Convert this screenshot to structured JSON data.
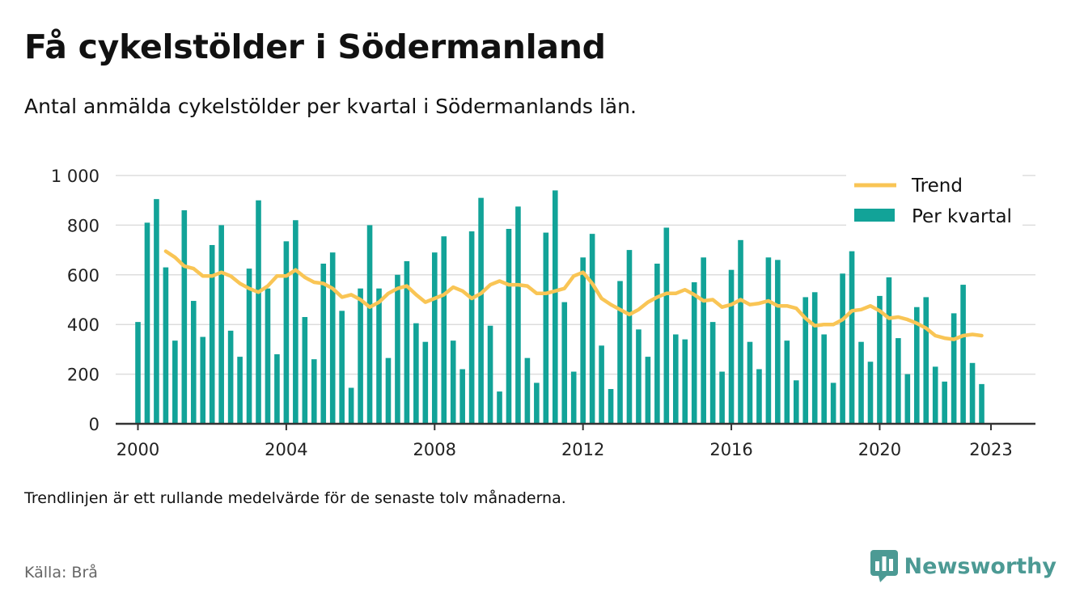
{
  "title": "Få cykelstölder i Södermanland",
  "subtitle": "Antal anmälda cykelstölder per kvartal i Södermanlands län.",
  "footnote": "Trendlinjen är ett rullande medelvärde för de senaste tolv månaderna.",
  "source": "Källa: Brå",
  "brand": {
    "name": "Newsworthy",
    "icon": "newsworthy-logo-icon",
    "color": "#4c9a94"
  },
  "chart_data": {
    "type": "bar",
    "title": "Få cykelstölder i Södermanland",
    "x_start": 2000,
    "x_step": 0.25,
    "xlim": [
      1999.4,
      2024.2
    ],
    "ylim": [
      0,
      1000
    ],
    "x_ticks": [
      2000,
      2004,
      2008,
      2012,
      2016,
      2020,
      2023
    ],
    "x_tick_labels": [
      "2000",
      "2004",
      "2008",
      "2012",
      "2016",
      "2020",
      "2023"
    ],
    "y_ticks": [
      0,
      200,
      400,
      600,
      800,
      1000
    ],
    "y_tick_labels": [
      "0",
      "200",
      "400",
      "600",
      "800",
      "1 000"
    ],
    "grid": true,
    "legend_position": "top-right",
    "colors": {
      "bars": "#12a398",
      "trend": "#f9c555",
      "grid": "#dddddd",
      "axis": "#333333"
    },
    "series": [
      {
        "name": "Per kvartal",
        "type": "bar",
        "values": [
          410,
          810,
          905,
          630,
          335,
          860,
          495,
          350,
          720,
          800,
          375,
          270,
          625,
          900,
          545,
          280,
          735,
          820,
          430,
          260,
          645,
          690,
          455,
          145,
          545,
          800,
          545,
          265,
          600,
          655,
          405,
          330,
          690,
          755,
          335,
          220,
          775,
          910,
          395,
          130,
          785,
          875,
          265,
          165,
          770,
          940,
          490,
          210,
          670,
          765,
          315,
          140,
          575,
          700,
          380,
          270,
          645,
          790,
          360,
          340,
          570,
          670,
          410,
          210,
          620,
          740,
          330,
          220,
          670,
          660,
          335,
          175,
          510,
          530,
          360,
          165,
          605,
          695,
          330,
          250,
          515,
          590,
          345,
          200,
          470,
          510,
          230,
          170,
          445,
          560,
          245,
          160
        ]
      },
      {
        "name": "Trend",
        "type": "line",
        "x_start": 2000.75,
        "values": [
          695,
          670,
          635,
          625,
          595,
          595,
          610,
          595,
          565,
          545,
          530,
          555,
          595,
          595,
          620,
          590,
          570,
          565,
          545,
          510,
          520,
          500,
          470,
          490,
          525,
          545,
          555,
          520,
          490,
          505,
          520,
          550,
          535,
          505,
          525,
          560,
          575,
          560,
          560,
          555,
          525,
          525,
          535,
          545,
          595,
          610,
          565,
          505,
          480,
          460,
          440,
          460,
          490,
          510,
          525,
          525,
          540,
          520,
          495,
          500,
          470,
          480,
          500,
          480,
          485,
          495,
          475,
          475,
          465,
          425,
          395,
          400,
          400,
          420,
          455,
          460,
          475,
          455,
          425,
          430,
          420,
          405,
          385,
          355,
          345,
          340,
          355,
          360,
          355
        ]
      }
    ]
  }
}
